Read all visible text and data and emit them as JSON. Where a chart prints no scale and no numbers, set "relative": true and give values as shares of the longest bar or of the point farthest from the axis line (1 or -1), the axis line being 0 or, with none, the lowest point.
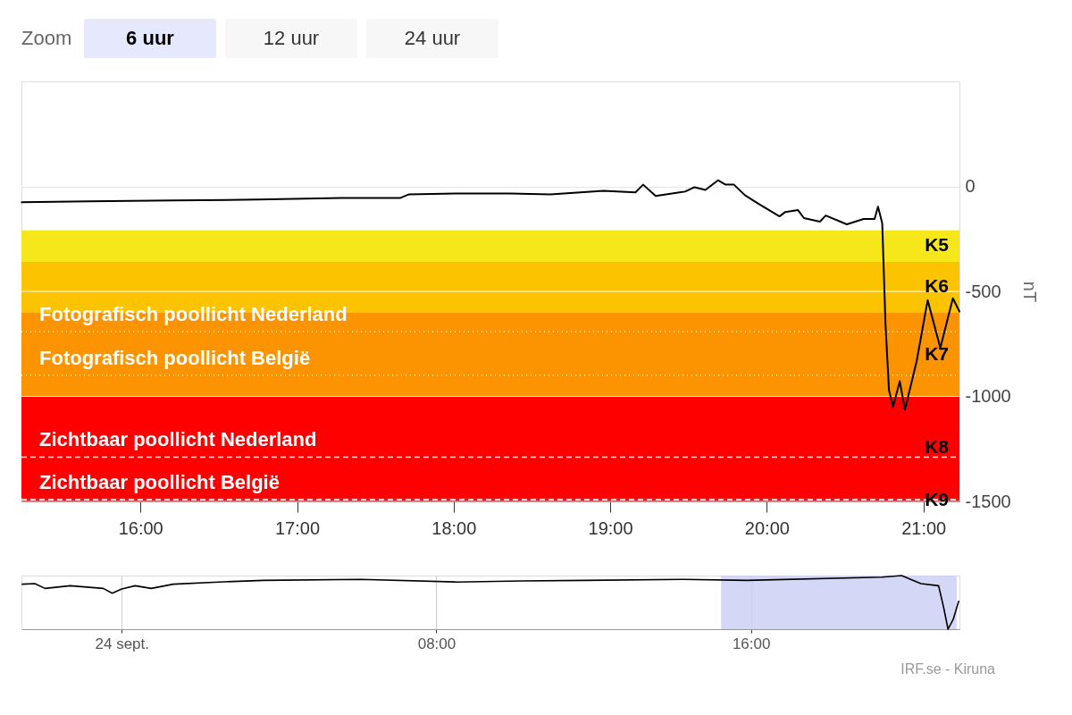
{
  "chart_data": [
    {
      "type": "line",
      "ylabel": "nT",
      "annotations": [
        "Zoom",
        "6 uur",
        "12 uur",
        "24 uur"
      ],
      "x": [
        15.242,
        15.672,
        16.21,
        16.747,
        17.285,
        17.661,
        17.715,
        18.038,
        18.36,
        18.618,
        18.957,
        19.161,
        19.21,
        19.29,
        19.478,
        19.538,
        19.608,
        19.688,
        19.737,
        19.79,
        19.86,
        19.941,
        20.081,
        20.118,
        20.199,
        20.237,
        20.339,
        20.376,
        20.511,
        20.618,
        20.688,
        20.71,
        20.737,
        20.758,
        20.78,
        20.806,
        20.849,
        20.882,
        20.957,
        21.027,
        21.108,
        21.188,
        21.23
      ],
      "series": [
        {
          "color": "#000000",
          "values": [
            -76,
            -71,
            -67,
            -63,
            -55,
            -55,
            -38,
            -34,
            -34,
            -38,
            -21,
            -29,
            8,
            -46,
            -25,
            -4,
            -17,
            29,
            8,
            8,
            -42,
            -80,
            -143,
            -122,
            -113,
            -151,
            -168,
            -139,
            -181,
            -155,
            -155,
            -97,
            -176,
            -659,
            -970,
            -1050,
            -928,
            -1063,
            -832,
            -542,
            -769,
            -533,
            -596
          ]
        }
      ],
      "xlim": [
        15.24,
        21.23
      ],
      "xticks": [
        {
          "value": 16,
          "label": "16:00"
        },
        {
          "value": 17,
          "label": "17:00"
        },
        {
          "value": 18,
          "label": "18:00"
        },
        {
          "value": 19,
          "label": "19:00"
        },
        {
          "value": 20,
          "label": "20:00"
        },
        {
          "value": 21,
          "label": "21:00"
        }
      ],
      "ylim": [
        -1500,
        500
      ],
      "yticks": [
        0,
        -500,
        -1000,
        -1500
      ],
      "grid": "y",
      "bands": [
        {
          "axis": "y",
          "from": -210,
          "to": -360,
          "label": "K5",
          "color": "#f5e71a"
        },
        {
          "axis": "y",
          "from": -360,
          "to": -600,
          "label": "K6",
          "color": "#fcc400"
        },
        {
          "axis": "y",
          "from": -600,
          "to": -1000,
          "label": "K7",
          "color": "#fb9400"
        },
        {
          "axis": "y",
          "from": -1000,
          "to": -1490,
          "label": "K8",
          "color": "#ff0000"
        },
        {
          "axis": "y",
          "from": -1490,
          "to": -1500,
          "label": "K9",
          "color": "#cc0000"
        }
      ],
      "ref_lines": [
        {
          "axis": "y",
          "value": -693,
          "label": "Fotografisch poollicht Nederland",
          "color": "#ffffff",
          "line_style": "dotted"
        },
        {
          "axis": "y",
          "value": -899,
          "label": "Fotografisch poollicht België",
          "color": "#ffffff",
          "line_style": "dotted"
        },
        {
          "axis": "y",
          "value": -1289,
          "label": "Zichtbaar poollicht Nederland",
          "color": "#ffffff",
          "line_style": "dashed"
        },
        {
          "axis": "y",
          "value": -1492,
          "label": "Zichtbaar poollicht België",
          "color": "#ffffff",
          "line_style": "dashed"
        }
      ]
    },
    {
      "type": "line",
      "relative": true,
      "annotations": [
        "IRF.se - Kiruna"
      ],
      "x": [
        -2.53,
        -2.21,
        -1.95,
        -1.31,
        -0.47,
        -0.24,
        0,
        0.34,
        0.75,
        1.31,
        2.47,
        3.61,
        6.07,
        8.52,
        10.17,
        11.8,
        14.27,
        15.9,
        19.33,
        19.83,
        20.32,
        20.77,
        20.9,
        21.01,
        21.14,
        21.28
      ],
      "series": [
        {
          "color": "#000000",
          "values": [
            0.84,
            0.85,
            0.76,
            0.81,
            0.76,
            0.67,
            0.75,
            0.81,
            0.76,
            0.84,
            0.88,
            0.91,
            0.93,
            0.88,
            0.9,
            0.91,
            0.93,
            0.91,
            0.97,
            1.0,
            0.85,
            0.81,
            0.4,
            0,
            0.18,
            0.52
          ]
        }
      ],
      "xlim": [
        -2.55,
        21.3
      ],
      "xticks": [
        {
          "value": 0,
          "label": "24 sept."
        },
        {
          "value": 8,
          "label": "08:00"
        },
        {
          "value": 16,
          "label": "16:00"
        }
      ],
      "grid": "x",
      "bands": [
        {
          "axis": "x",
          "from": 15.24,
          "to": 21.23,
          "color": "#ccd1f5"
        }
      ]
    }
  ]
}
